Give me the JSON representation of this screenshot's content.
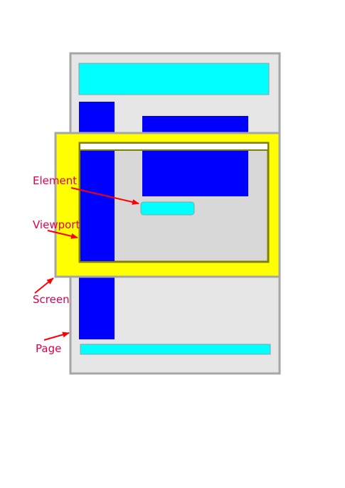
{
  "labels": {
    "element": "Element",
    "viewport": "Viewport",
    "screen": "Screen",
    "page": "Page"
  },
  "colors": {
    "page_fill": "#e6e6e6",
    "page_stroke": "#a6a6a6",
    "cyan": "#00ffff",
    "blue": "#0000ff",
    "yellow": "#ffff00",
    "viewport_fill": "#cccccc",
    "viewport_stroke": "#808000",
    "white": "#ffffff",
    "arrow": "#ff0000",
    "label": "#e0004d"
  }
}
